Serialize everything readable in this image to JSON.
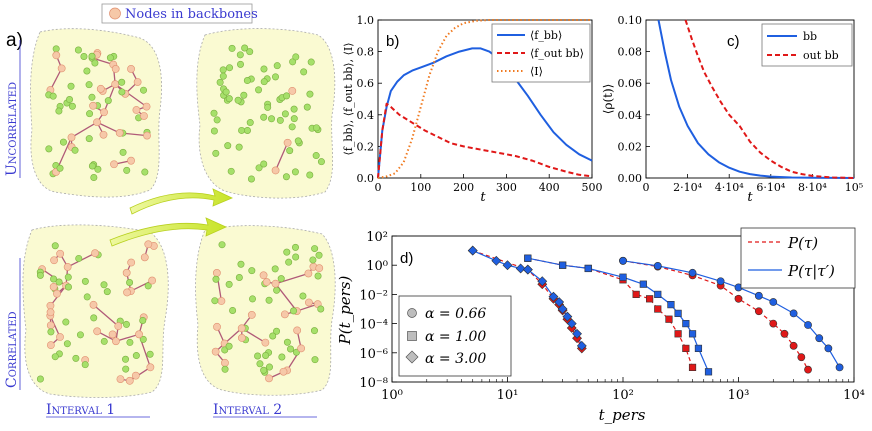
{
  "panel_a": {
    "label": "a)",
    "legend": "Nodes in backbones",
    "row_labels": [
      "Uncorrelated",
      "Correlated"
    ],
    "interval_labels": [
      "Interval 1",
      "Interval 2"
    ],
    "colors": {
      "blob": "#fafad2",
      "node_bb": "#f6c8a8",
      "node_other": "#a6e06a",
      "edge": "#b05a78",
      "arrow": "#d7ee3c",
      "label_blue": "#3a3ad0"
    }
  },
  "chart_data": [
    {
      "id": "b",
      "type": "line",
      "label": "b)",
      "xlabel": "t",
      "ylabel": "⟨f_bb⟩, ⟨f_out bb⟩, ⟨I⟩",
      "xlim": [
        0,
        500
      ],
      "ylim": [
        0,
        1.0
      ],
      "xticks": [
        "0",
        "100",
        "200",
        "300",
        "400",
        "500"
      ],
      "yticks": [
        "0.0",
        "0.2",
        "0.4",
        "0.6",
        "0.8",
        "1.0"
      ],
      "legend": [
        "⟨f_bb⟩",
        "⟨f_out bb⟩",
        "⟨I⟩"
      ],
      "series": [
        {
          "name": "⟨f_bb⟩",
          "color": "#1f5fe0",
          "style": "solid",
          "x": [
            0,
            10,
            20,
            30,
            45,
            60,
            80,
            100,
            130,
            160,
            190,
            220,
            240,
            260,
            290,
            320,
            350,
            380,
            410,
            440,
            470,
            500
          ],
          "y": [
            0,
            0.3,
            0.45,
            0.55,
            0.61,
            0.65,
            0.68,
            0.7,
            0.73,
            0.77,
            0.8,
            0.82,
            0.82,
            0.8,
            0.74,
            0.63,
            0.52,
            0.4,
            0.29,
            0.21,
            0.15,
            0.11
          ]
        },
        {
          "name": "⟨f_out bb⟩",
          "color": "#e01818",
          "style": "dashed",
          "x": [
            0,
            10,
            20,
            30,
            50,
            80,
            110,
            140,
            170,
            200,
            240,
            280,
            320,
            360,
            400,
            440,
            470,
            500
          ],
          "y": [
            0,
            0.3,
            0.47,
            0.45,
            0.4,
            0.35,
            0.3,
            0.26,
            0.22,
            0.2,
            0.18,
            0.16,
            0.14,
            0.11,
            0.07,
            0.04,
            0.02,
            0.01
          ]
        },
        {
          "name": "⟨I⟩",
          "color": "#f07a20",
          "style": "dotted",
          "x": [
            0,
            20,
            40,
            60,
            80,
            100,
            120,
            140,
            160,
            180,
            200,
            230,
            260,
            300,
            500
          ],
          "y": [
            0,
            0.01,
            0.03,
            0.1,
            0.25,
            0.45,
            0.65,
            0.8,
            0.9,
            0.95,
            0.98,
            0.995,
            1.0,
            1.0,
            1.0
          ]
        }
      ]
    },
    {
      "id": "c",
      "type": "line",
      "label": "c)",
      "xlabel": "t",
      "ylabel": "⟨ρ(t)⟩",
      "xlim": [
        0,
        100000
      ],
      "ylim": [
        0,
        0.1
      ],
      "xticks": [
        "0",
        "2·10⁴",
        "4·10⁴",
        "6·10⁴",
        "8·10⁴",
        "10⁵"
      ],
      "yticks": [
        "0.00",
        "0.02",
        "0.04",
        "0.06",
        "0.08",
        "0.10"
      ],
      "legend": [
        "bb",
        "out bb"
      ],
      "series": [
        {
          "name": "bb",
          "color": "#1f5fe0",
          "style": "solid",
          "x": [
            6000,
            9000,
            12000,
            16000,
            20000,
            25000,
            30000,
            35000,
            40000,
            45000,
            50000,
            55000,
            60000,
            70000,
            80000,
            100000
          ],
          "y": [
            0.1,
            0.08,
            0.062,
            0.045,
            0.033,
            0.022,
            0.015,
            0.01,
            0.0065,
            0.004,
            0.0025,
            0.0015,
            0.0009,
            0.0003,
            0.0001,
            0
          ]
        },
        {
          "name": "out bb",
          "color": "#e01818",
          "style": "dashed",
          "x": [
            19000,
            22000,
            25000,
            28000,
            32000,
            36000,
            40000,
            45000,
            50000,
            55000,
            60000,
            65000,
            70000,
            75000,
            80000,
            90000,
            100000
          ],
          "y": [
            0.1,
            0.088,
            0.077,
            0.067,
            0.057,
            0.048,
            0.04,
            0.033,
            0.023,
            0.016,
            0.011,
            0.007,
            0.004,
            0.0025,
            0.0013,
            0.0003,
            0
          ]
        }
      ]
    },
    {
      "id": "d",
      "type": "scatter",
      "label": "d)",
      "xlabel": "t_pers",
      "ylabel": "P(t_pers)",
      "xscale": "log",
      "yscale": "log",
      "xlim": [
        1,
        10000
      ],
      "ylim": [
        1e-08,
        100
      ],
      "xticks": [
        "10⁰",
        "10¹",
        "10²",
        "10³",
        "10⁴"
      ],
      "yticks": [
        "10⁻⁸",
        "10⁻⁶",
        "10⁻⁴",
        "10⁻²",
        "10⁰",
        "10²"
      ],
      "legend_lines": [
        "P(τ)",
        "P(τ|τ′)"
      ],
      "legend_markers": [
        "α = 0.66",
        "α = 1.00",
        "α = 3.00"
      ],
      "series": [
        {
          "name": "α = 3.00, P(τ)",
          "marker": "diamond",
          "color": "#e01818",
          "line": "dashed",
          "x": [
            5,
            15,
            20,
            25,
            28,
            30,
            33,
            36,
            40,
            44
          ],
          "y": [
            10,
            0.5,
            0.05,
            0.005,
            0.002,
            0.0008,
            0.0002,
            5e-05,
            1e-05,
            2e-06
          ]
        },
        {
          "name": "α = 3.00, P(τ|τ′)",
          "marker": "diamond",
          "color": "#1f5fe0",
          "line": "solid",
          "x": [
            5,
            8,
            10,
            13,
            15,
            20,
            25,
            28,
            30,
            33,
            36,
            40,
            44
          ],
          "y": [
            10,
            2,
            1,
            0.6,
            0.5,
            0.08,
            0.007,
            0.003,
            0.001,
            0.0003,
            0.0001,
            2e-05,
            3e-06
          ]
        },
        {
          "name": "α = 1.00, P(τ)",
          "marker": "square",
          "color": "#e01818",
          "line": "dashed",
          "x": [
            15,
            30,
            50,
            100,
            130,
            170,
            200,
            250,
            300,
            350,
            400
          ],
          "y": [
            3,
            1,
            0.6,
            0.1,
            0.01,
            0.005,
            0.001,
            0.0002,
            2e-05,
            2e-06,
            1e-07
          ]
        },
        {
          "name": "α = 1.00, P(τ|τ′)",
          "marker": "square",
          "color": "#1f5fe0",
          "line": "solid",
          "x": [
            15,
            30,
            50,
            100,
            150,
            200,
            260,
            300,
            350,
            400,
            450,
            550
          ],
          "y": [
            3,
            1,
            0.6,
            0.15,
            0.05,
            0.01,
            0.002,
            0.0005,
            0.0001,
            2e-05,
            2e-06,
            5e-08
          ]
        },
        {
          "name": "α = 0.66, P(τ)",
          "marker": "circle",
          "color": "#e01818",
          "line": "dashed",
          "x": [
            100,
            200,
            400,
            700,
            1000,
            1500,
            2000,
            2500,
            3000,
            3500,
            4000
          ],
          "y": [
            2,
            0.8,
            0.2,
            0.04,
            0.005,
            0.0007,
            0.0001,
            2e-05,
            3e-06,
            5e-07,
            7e-08
          ]
        },
        {
          "name": "α = 0.66, P(τ|τ′)",
          "marker": "circle",
          "color": "#1f5fe0",
          "line": "solid",
          "x": [
            100,
            200,
            400,
            700,
            1000,
            1500,
            2000,
            3000,
            4000,
            5000,
            6000,
            7500
          ],
          "y": [
            2,
            0.9,
            0.3,
            0.08,
            0.03,
            0.008,
            0.003,
            0.0005,
            8e-05,
            1e-05,
            2e-06,
            1e-07
          ]
        }
      ]
    }
  ]
}
